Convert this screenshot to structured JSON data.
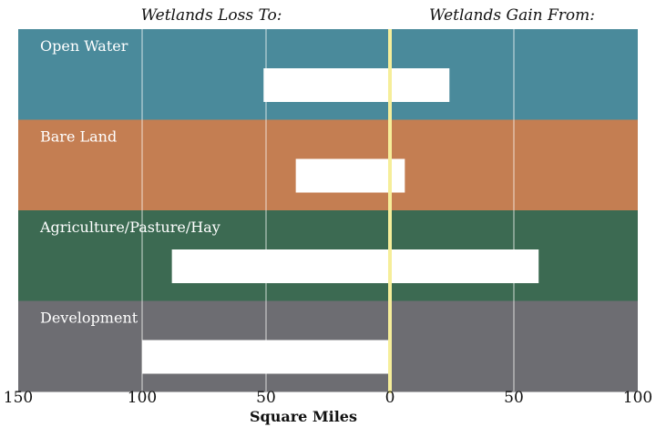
{
  "chart_data": {
    "type": "bar",
    "header_left": "Wetlands Loss To:",
    "header_right": "Wetlands Gain From:",
    "categories": [
      "Open Water",
      "Bare Land",
      "Agriculture/Pasture/Hay",
      "Development"
    ],
    "band_colors": [
      "#4a8a9b",
      "#c47e52",
      "#3c6a52",
      "#6d6d72"
    ],
    "loss_values": [
      51,
      38,
      88,
      100
    ],
    "gain_values": [
      24,
      6,
      60,
      0
    ],
    "x_ticks": [
      "150",
      "100",
      "50",
      "0",
      "50",
      "100"
    ],
    "x_range": [
      -150,
      100
    ],
    "xlabel": "Square Miles",
    "grid": true,
    "zero_line_color": "#f6ee9a",
    "bar_color": "#ffffff"
  }
}
